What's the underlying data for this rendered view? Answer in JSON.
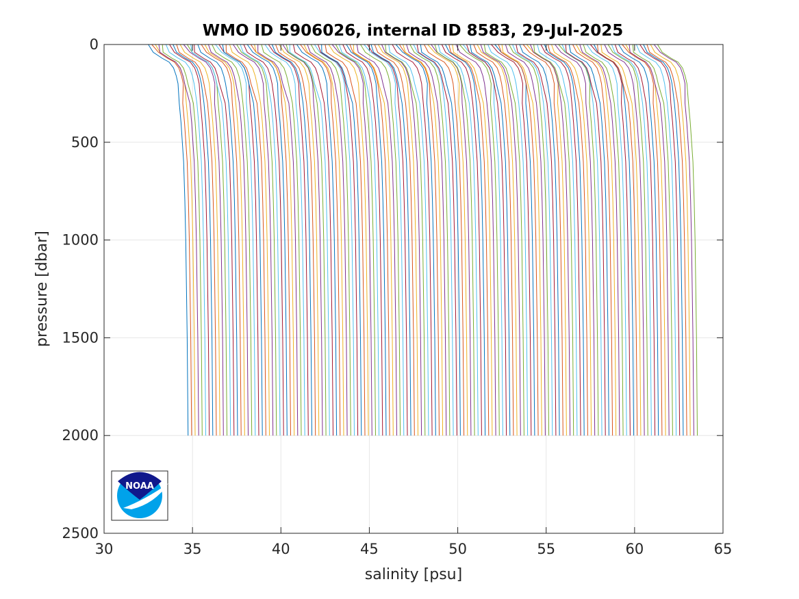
{
  "chart_data": {
    "type": "line",
    "title": "WMO ID 5906026, internal ID 8583, 29-Jul-2025",
    "xlabel": "salinity [psu]",
    "ylabel": "pressure [dbar]",
    "xlim": [
      30,
      65
    ],
    "ylim": [
      0,
      2500
    ],
    "y_reversed": true,
    "grid": true,
    "xticks": [
      "30",
      "35",
      "40",
      "45",
      "50",
      "55",
      "60",
      "65"
    ],
    "yticks": [
      "0",
      "500",
      "1000",
      "1500",
      "2000",
      "2500"
    ],
    "profile_count": 145,
    "profile_offset_psu": 0.2,
    "series_colors": [
      "#0072bd",
      "#d95319",
      "#edb120",
      "#7e2f8e",
      "#77ac30",
      "#4dbeee",
      "#a2142f"
    ],
    "profile_shape": {
      "pressure": [
        0,
        40,
        70,
        90,
        120,
        160,
        200,
        300,
        400,
        600,
        800,
        1000,
        1500,
        2000
      ],
      "salinity": [
        32.5,
        32.7,
        33.2,
        33.6,
        33.85,
        34.0,
        34.1,
        34.25,
        34.35,
        34.5,
        34.57,
        34.62,
        34.7,
        34.75
      ]
    },
    "profiles": [
      {
        "first_salinity_at_2000": 34.75,
        "last_salinity_at_2000": 63.55
      }
    ]
  },
  "logo": {
    "text": "NOAA"
  }
}
